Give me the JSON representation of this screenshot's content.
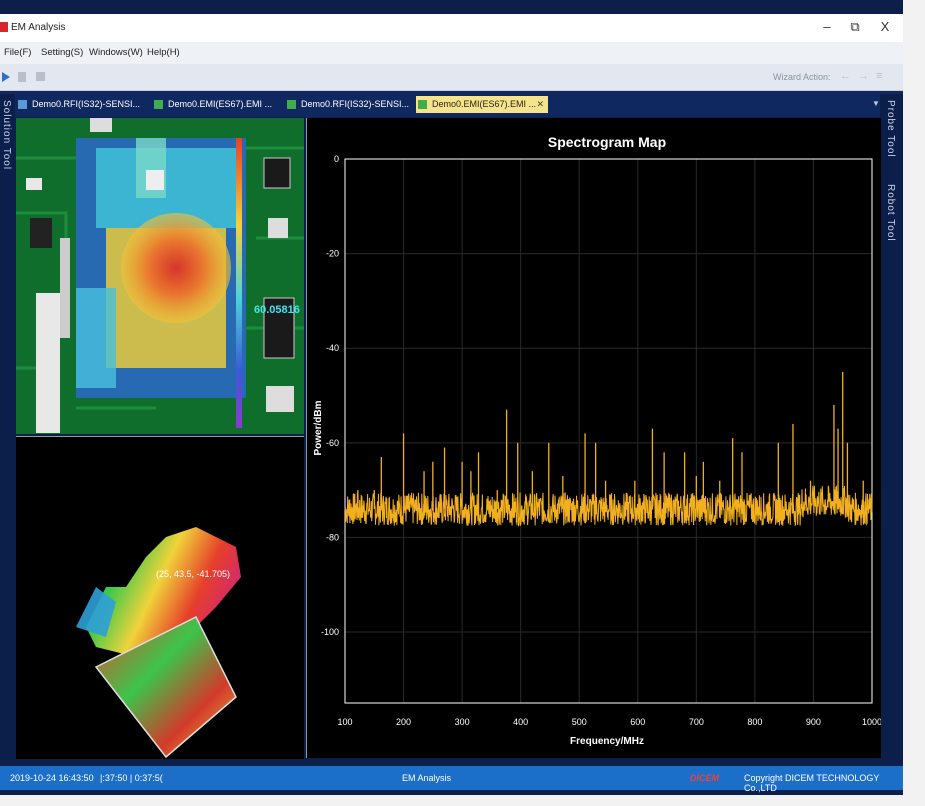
{
  "window": {
    "title": "EM Analysis",
    "minimize": "–",
    "restore": "⧉",
    "close": "X"
  },
  "menu": [
    "File(F)",
    "Setting(S)",
    "Windows(W)",
    "Help(H)"
  ],
  "toolbar": {
    "wizard_label": "Wizard Action:"
  },
  "tabs": [
    {
      "label": "Demo0.RFI(IS32)-SENSI..."
    },
    {
      "label": "Demo0.EMI(ES67).EMI ..."
    },
    {
      "label": "Demo0.RFI(IS32)-SENSI..."
    },
    {
      "label": "Demo0.EMI(ES67).EMI ...",
      "active": true
    }
  ],
  "side_left": {
    "solution_tool": "Solution Tool"
  },
  "side_right": {
    "probe_tool": "Probe Tool",
    "robot_tool": "Robot Tool"
  },
  "heatmap": {
    "readout": "60.05816"
  },
  "view3d": {
    "coords": "(25, 43.5, -41.705)"
  },
  "chart_data": {
    "type": "line",
    "title": "Spectrogram Map",
    "xlabel": "Frequency/MHz",
    "ylabel": "Power/dBm",
    "xlim": [
      100,
      1000
    ],
    "ylim": [
      -115,
      0
    ],
    "xticks": [
      100,
      200,
      300,
      400,
      500,
      600,
      700,
      800,
      900,
      1000
    ],
    "yticks": [
      0,
      -20,
      -40,
      -60,
      -80,
      -100
    ],
    "series": [
      {
        "color": "#f2b01e",
        "baseline": -74,
        "noise_span": 5,
        "peaks": [
          {
            "x": 108,
            "y": -72
          },
          {
            "x": 122,
            "y": -70
          },
          {
            "x": 150,
            "y": -70
          },
          {
            "x": 162,
            "y": -63
          },
          {
            "x": 200,
            "y": -58
          },
          {
            "x": 235,
            "y": -66
          },
          {
            "x": 250,
            "y": -64
          },
          {
            "x": 270,
            "y": -61
          },
          {
            "x": 300,
            "y": -64
          },
          {
            "x": 315,
            "y": -66
          },
          {
            "x": 328,
            "y": -62
          },
          {
            "x": 360,
            "y": -70
          },
          {
            "x": 376,
            "y": -53
          },
          {
            "x": 395,
            "y": -60
          },
          {
            "x": 420,
            "y": -66
          },
          {
            "x": 448,
            "y": -60
          },
          {
            "x": 472,
            "y": -67
          },
          {
            "x": 510,
            "y": -58
          },
          {
            "x": 528,
            "y": -60
          },
          {
            "x": 545,
            "y": -68
          },
          {
            "x": 595,
            "y": -68
          },
          {
            "x": 625,
            "y": -57
          },
          {
            "x": 645,
            "y": -62
          },
          {
            "x": 680,
            "y": -62
          },
          {
            "x": 700,
            "y": -67
          },
          {
            "x": 712,
            "y": -64
          },
          {
            "x": 740,
            "y": -68
          },
          {
            "x": 762,
            "y": -59
          },
          {
            "x": 778,
            "y": -62
          },
          {
            "x": 840,
            "y": -60
          },
          {
            "x": 865,
            "y": -56
          },
          {
            "x": 895,
            "y": -68
          },
          {
            "x": 935,
            "y": -52
          },
          {
            "x": 942,
            "y": -57
          },
          {
            "x": 950,
            "y": -45
          },
          {
            "x": 958,
            "y": -60
          },
          {
            "x": 985,
            "y": -68
          }
        ]
      }
    ],
    "grid": true,
    "legend": "none"
  },
  "status": {
    "datetime": "2019-10-24 16:43:50",
    "timer": "|:37:50 | 0:37:5(",
    "center": "EM Analysis",
    "logo": "DICEM",
    "copyright": "Copyright DICEM TECHNOLOGY Co.,LTD"
  }
}
